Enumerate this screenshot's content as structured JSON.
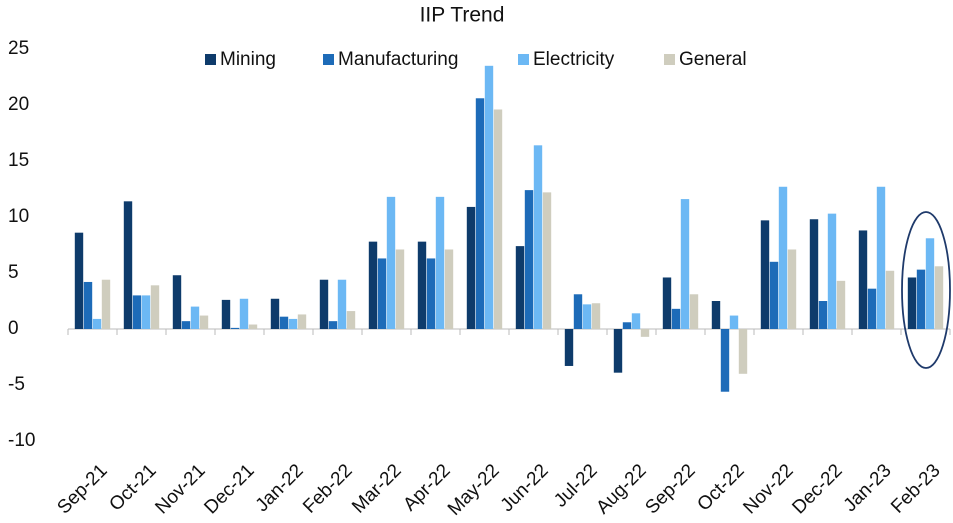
{
  "chart_data": {
    "type": "bar",
    "title": "IIP Trend",
    "categories": [
      "Sep-21",
      "Oct-21",
      "Nov-21",
      "Dec-21",
      "Jan-22",
      "Feb-22",
      "Mar-22",
      "Apr-22",
      "May-22",
      "Jun-22",
      "Jul-22",
      "Aug-22",
      "Sep-22",
      "Oct-22",
      "Nov-22",
      "Dec-22",
      "Jan-23",
      "Feb-23"
    ],
    "series": [
      {
        "name": "Mining",
        "color": "#0e3b6b",
        "values": [
          8.6,
          11.4,
          4.8,
          2.6,
          2.7,
          4.4,
          7.8,
          7.8,
          10.9,
          7.4,
          -3.3,
          -3.9,
          4.6,
          2.5,
          9.7,
          9.8,
          8.8,
          4.6
        ]
      },
      {
        "name": "Manufacturing",
        "color": "#1d6bb8",
        "values": [
          4.2,
          3.0,
          0.7,
          0.1,
          1.1,
          0.7,
          6.3,
          6.3,
          20.6,
          12.4,
          3.1,
          0.6,
          1.8,
          -5.6,
          6.0,
          2.5,
          3.6,
          5.3
        ]
      },
      {
        "name": "Electricity",
        "color": "#6cb8f4",
        "values": [
          0.9,
          3.0,
          2.0,
          2.7,
          0.9,
          4.4,
          11.8,
          11.8,
          23.5,
          16.4,
          2.2,
          1.4,
          11.6,
          1.2,
          12.7,
          10.3,
          12.7,
          8.1
        ]
      },
      {
        "name": "General",
        "color": "#cfcdbe",
        "values": [
          4.4,
          3.9,
          1.2,
          0.4,
          1.3,
          1.6,
          7.1,
          7.1,
          19.6,
          12.2,
          2.3,
          -0.7,
          3.1,
          -4.0,
          7.1,
          4.3,
          5.2,
          5.6
        ]
      }
    ],
    "ylim": [
      -10,
      25
    ],
    "yticks": [
      -10,
      -5,
      0,
      5,
      10,
      15,
      20,
      25
    ],
    "grid": false,
    "legend": "top"
  }
}
